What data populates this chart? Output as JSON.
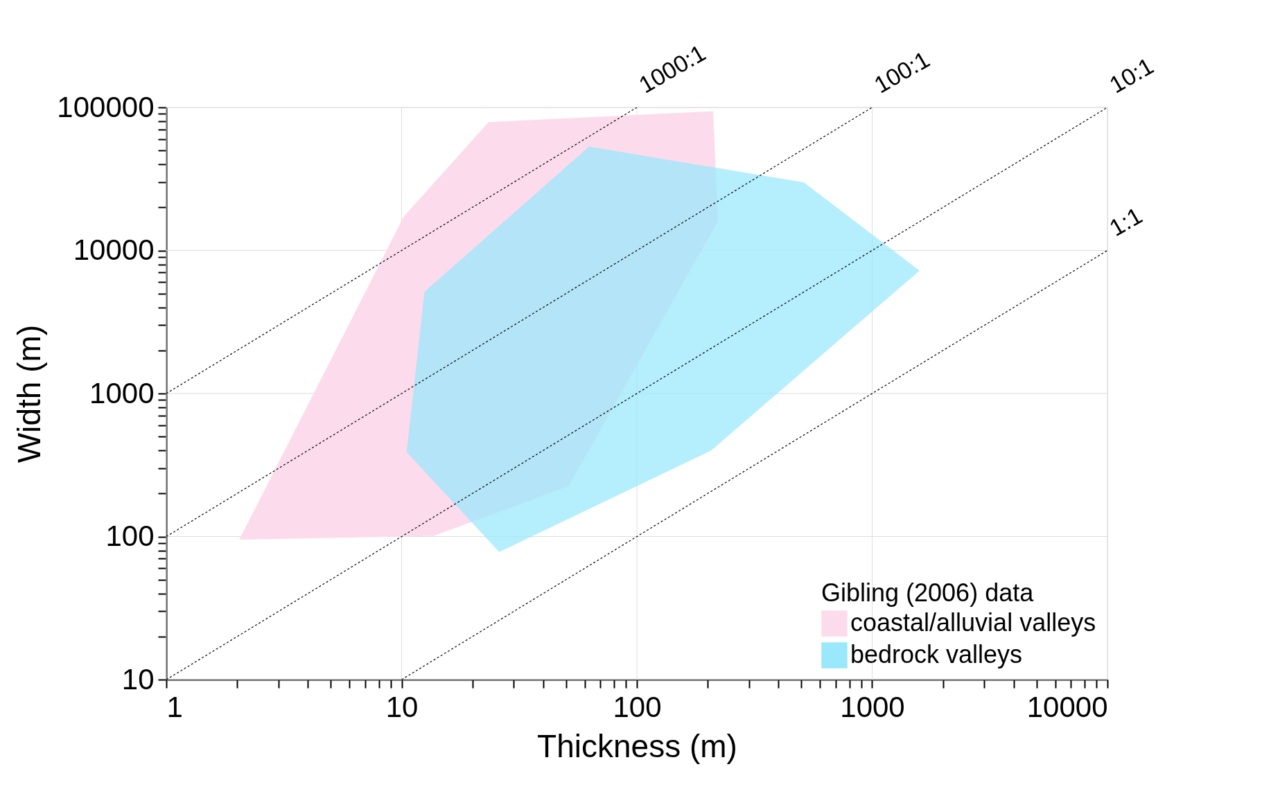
{
  "chart_data": {
    "type": "area",
    "xlabel": "Thickness (m)",
    "ylabel": "Width (m)",
    "legend_title": "Gibling (2006) data",
    "legend": "bottom right",
    "log": "xy",
    "grid": true,
    "xlim": [
      1,
      10000
    ],
    "ylim": [
      10,
      100000
    ],
    "xticks": [
      1,
      {
        "value": 2,
        "label": null
      },
      {
        "value": 3,
        "label": null
      },
      {
        "value": 4,
        "label": null
      },
      {
        "value": 5,
        "label": null
      },
      {
        "value": 6,
        "label": null
      },
      {
        "value": 7,
        "label": null
      },
      {
        "value": 8,
        "label": null
      },
      {
        "value": 9,
        "label": null
      },
      10,
      {
        "value": 20,
        "label": null
      },
      {
        "value": 30,
        "label": null
      },
      {
        "value": 40,
        "label": null
      },
      {
        "value": 50,
        "label": null
      },
      {
        "value": 60,
        "label": null
      },
      {
        "value": 70,
        "label": null
      },
      {
        "value": 80,
        "label": null
      },
      {
        "value": 90,
        "label": null
      },
      100,
      {
        "value": 200,
        "label": null
      },
      {
        "value": 300,
        "label": null
      },
      {
        "value": 400,
        "label": null
      },
      {
        "value": 500,
        "label": null
      },
      {
        "value": 600,
        "label": null
      },
      {
        "value": 700,
        "label": null
      },
      {
        "value": 800,
        "label": null
      },
      {
        "value": 900,
        "label": null
      },
      1000,
      {
        "value": 2000,
        "label": null
      },
      {
        "value": 3000,
        "label": null
      },
      {
        "value": 4000,
        "label": null
      },
      {
        "value": 5000,
        "label": null
      },
      {
        "value": 6000,
        "label": null
      },
      {
        "value": 7000,
        "label": null
      },
      {
        "value": 8000,
        "label": null
      },
      {
        "value": 9000,
        "label": null
      },
      10000
    ],
    "yticks": [
      10,
      {
        "value": 20,
        "label": null
      },
      {
        "value": 30,
        "label": null
      },
      {
        "value": 40,
        "label": null
      },
      {
        "value": 50,
        "label": null
      },
      {
        "value": 60,
        "label": null
      },
      {
        "value": 70,
        "label": null
      },
      {
        "value": 80,
        "label": null
      },
      {
        "value": 90,
        "label": null
      },
      100,
      {
        "value": 200,
        "label": null
      },
      {
        "value": 300,
        "label": null
      },
      {
        "value": 400,
        "label": null
      },
      {
        "value": 500,
        "label": null
      },
      {
        "value": 600,
        "label": null
      },
      {
        "value": 700,
        "label": null
      },
      {
        "value": 800,
        "label": null
      },
      {
        "value": 900,
        "label": null
      },
      1000,
      {
        "value": 2000,
        "label": null
      },
      {
        "value": 3000,
        "label": null
      },
      {
        "value": 4000,
        "label": null
      },
      {
        "value": 5000,
        "label": null
      },
      {
        "value": 6000,
        "label": null
      },
      {
        "value": 7000,
        "label": null
      },
      {
        "value": 8000,
        "label": null
      },
      {
        "value": 9000,
        "label": null
      },
      10000,
      {
        "value": 20000,
        "label": null
      },
      {
        "value": 30000,
        "label": null
      },
      {
        "value": 40000,
        "label": null
      },
      {
        "value": 50000,
        "label": null
      },
      {
        "value": 60000,
        "label": null
      },
      {
        "value": 70000,
        "label": null
      },
      {
        "value": 80000,
        "label": null
      },
      {
        "value": 90000,
        "label": null
      },
      100000
    ],
    "series": [
      {
        "name": "coastal/alluvial valleys",
        "color": "#fcdcec",
        "x": [
          2.04,
          10.2,
          23.4,
          211,
          221,
          51.3,
          13.7
        ],
        "values": [
          95,
          17200,
          79000,
          94000,
          16100,
          225,
          101
        ]
      },
      {
        "name": "bedrock valleys",
        "color": "#99e8fc",
        "x": [
          12.5,
          62.6,
          512,
          1590,
          207,
          26,
          10.5
        ],
        "values": [
          5130,
          53200,
          29900,
          7220,
          400,
          78,
          390
        ]
      },
      {
        "name": "1000:1",
        "type": "line",
        "color": "#000000",
        "line_style": "dotted",
        "x": [
          1,
          100
        ],
        "values": [
          1000,
          100000
        ]
      },
      {
        "name": "100:1",
        "type": "line",
        "color": "#000000",
        "line_style": "dotted",
        "x": [
          1,
          1000
        ],
        "values": [
          100,
          100000
        ]
      },
      {
        "name": "10:1",
        "type": "line",
        "color": "#000000",
        "line_style": "dotted",
        "x": [
          1,
          10000
        ],
        "values": [
          10,
          100000
        ]
      },
      {
        "name": "1:1",
        "type": "line",
        "color": "#000000",
        "line_style": "dotted",
        "x": [
          10,
          10000
        ],
        "values": [
          10,
          10000
        ]
      }
    ]
  }
}
